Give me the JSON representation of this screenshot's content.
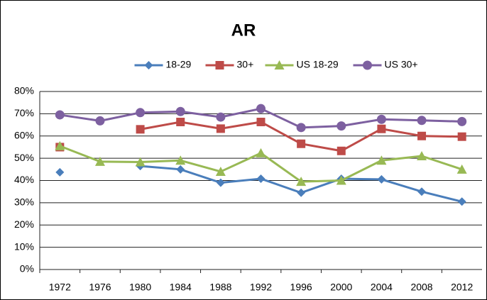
{
  "chart_data": {
    "type": "line",
    "title": "AR",
    "categories": [
      "1972",
      "1976",
      "1980",
      "1984",
      "1988",
      "1992",
      "1996",
      "2000",
      "2004",
      "2008",
      "2012"
    ],
    "series": [
      {
        "name": "18-29",
        "color": "#4a7ebb",
        "marker": "diamond",
        "values": [
          43.7,
          null,
          46.5,
          45,
          39,
          40.8,
          34.5,
          40.8,
          40.5,
          35,
          30.5
        ]
      },
      {
        "name": "30+",
        "color": "#be4b48",
        "marker": "square",
        "values": [
          55,
          null,
          63,
          66.3,
          63.3,
          66.3,
          56.5,
          53.3,
          63.2,
          60,
          59.7
        ]
      },
      {
        "name": "US 18-29",
        "color": "#98b954",
        "marker": "triangle",
        "values": [
          55.5,
          48.5,
          48.3,
          49,
          44,
          52.3,
          39.5,
          40,
          49,
          51,
          45
        ]
      },
      {
        "name": "US 30+",
        "color": "#7d60a0",
        "marker": "circle",
        "values": [
          69.5,
          66.8,
          70.5,
          71,
          68.5,
          72.3,
          63.8,
          64.5,
          67.5,
          67,
          66.5
        ]
      }
    ],
    "ylim": [
      0,
      80
    ],
    "yticks": [
      {
        "value": 0,
        "label": "0%"
      },
      {
        "value": 10,
        "label": "10%"
      },
      {
        "value": 20,
        "label": "20%"
      },
      {
        "value": 30,
        "label": "30%"
      },
      {
        "value": 40,
        "label": "40%"
      },
      {
        "value": 50,
        "label": "50%"
      },
      {
        "value": 60,
        "label": "60%"
      },
      {
        "value": 70,
        "label": "70%"
      },
      {
        "value": 80,
        "label": "80%"
      }
    ],
    "grid": true,
    "legend": "top"
  }
}
